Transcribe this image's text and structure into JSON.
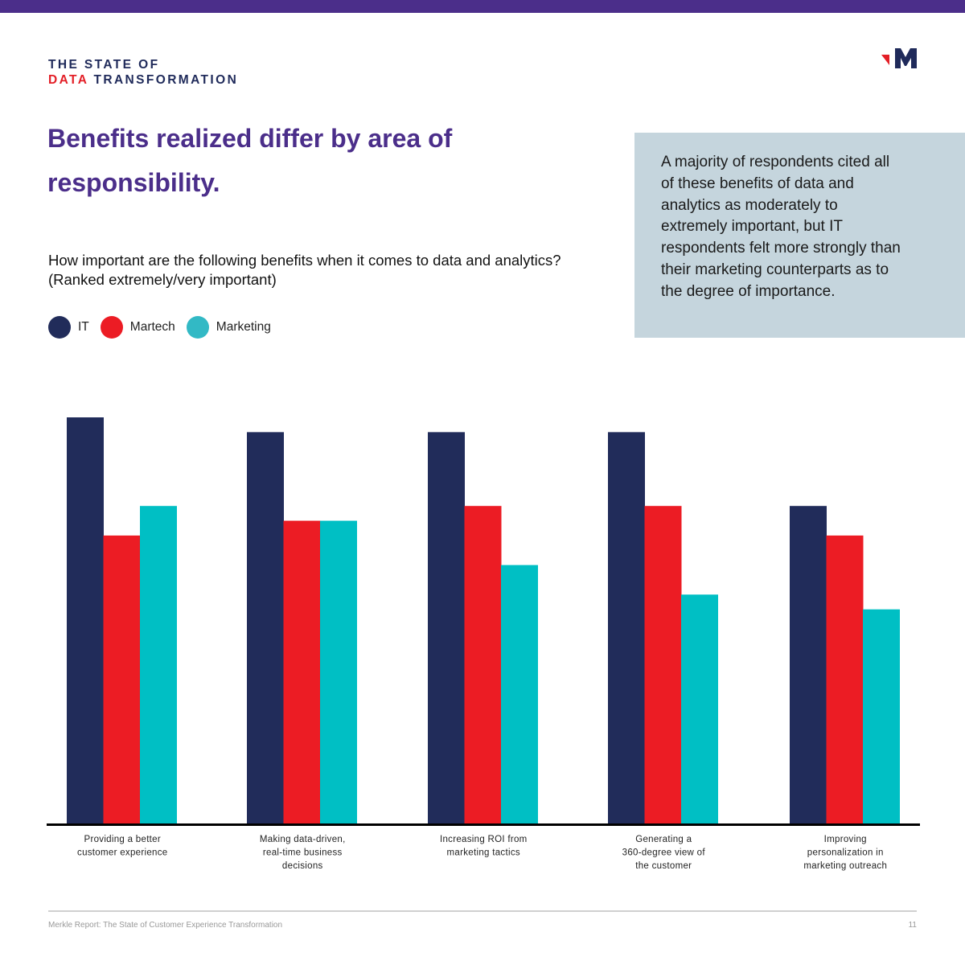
{
  "header": {
    "brand_line1": "THE STATE OF",
    "brand_line2_accent": "DATA",
    "brand_line2_rest": " TRANSFORMATION",
    "logo_icon": "merkle-m-logo-icon",
    "headline": "Benefits realized differ by area of responsibility."
  },
  "callout": {
    "text": "A majority of respondents cited all of these benefits of data and analytics as moderately to extremely important, but IT respondents felt more strongly than their marketing counterparts as to the degree of importance."
  },
  "colors": {
    "accent_purple": "#4b2e8a",
    "it": "#212c5a",
    "martech": "#ec1c24",
    "marketing": "#00bfc4",
    "callout_bg": "#c5d5dd"
  },
  "chart_data": {
    "type": "bar",
    "title": "How important are the following benefits when it comes to data and analytics?",
    "subtitle": "(Ranked extremely/very important)",
    "xlabel": "",
    "ylabel": "",
    "legend_position": "top-left",
    "grid": false,
    "ylim": [
      0,
      60
    ],
    "categories": [
      "Providing a better customer experience",
      "Making data-driven, real-time business decisions",
      "Increasing ROI from marketing tactics",
      "Generating a 360-degree view of the customer",
      "Improving personalization in marketing outreach"
    ],
    "category_label_lines": [
      [
        "Providing a better",
        "customer experience"
      ],
      [
        "Making data-driven,",
        "real-time business",
        "decisions"
      ],
      [
        "Increasing ROI from",
        "marketing tactics"
      ],
      [
        "Generating a",
        "360-degree view of",
        "the customer"
      ],
      [
        "Improving",
        "personalization in",
        "marketing outreach"
      ]
    ],
    "series": [
      {
        "name": "IT",
        "color": "#212c5a",
        "values": [
          55,
          53,
          53,
          53,
          43
        ]
      },
      {
        "name": "Martech",
        "color": "#ec1c24",
        "values": [
          39,
          41,
          43,
          43,
          39
        ]
      },
      {
        "name": "Marketing",
        "color": "#00bfc4",
        "values": [
          43,
          41,
          35,
          31,
          29
        ]
      }
    ]
  },
  "footer": {
    "text": "Merkle Report: The State of Customer Experience Transformation",
    "page": "11"
  }
}
